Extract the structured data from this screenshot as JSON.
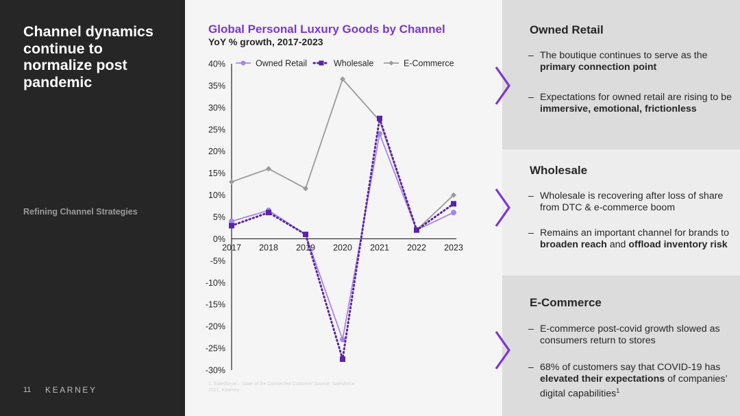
{
  "slide": {
    "title": "Channel dynamics continue to normalize post pandemic",
    "section_label": "Refining Channel Strategies",
    "page_number": "11",
    "brand": "KEARNEY"
  },
  "chart_data": {
    "type": "line",
    "title": "Global Personal Luxury Goods by Channel",
    "subtitle": "YoY % growth, 2017-2023",
    "categories": [
      "2017",
      "2018",
      "2019",
      "2020",
      "2021",
      "2022",
      "2023"
    ],
    "y_ticks": [
      "40%",
      "35%",
      "30%",
      "25%",
      "20%",
      "15%",
      "10%",
      "5%",
      "0%",
      "-5%",
      "-10%",
      "-15%",
      "-20%",
      "-25%",
      "-30%"
    ],
    "ylim": [
      -30,
      40
    ],
    "grid": false,
    "legend_position": "top",
    "series": [
      {
        "name": "Owned Retail",
        "values": [
          4,
          6.5,
          1,
          -23,
          24,
          2,
          6
        ],
        "color": "#a785ea",
        "marker": "circle",
        "dash": "solid"
      },
      {
        "name": "Wholesale",
        "values": [
          3,
          6,
          1,
          -27.5,
          27.5,
          2,
          8
        ],
        "color": "#5b23a8",
        "marker": "square",
        "dash": "dotted"
      },
      {
        "name": "E-Commerce",
        "values": [
          13,
          16,
          11.5,
          36.5,
          27,
          2,
          10
        ],
        "color": "#9a9a9a",
        "marker": "diamond",
        "dash": "solid"
      }
    ],
    "footnote": "1. Salesforce – State of the Connected Customer Source: Salesforce 2021, Kearney"
  },
  "sections": {
    "owned": {
      "heading": "Owned Retail",
      "b1_pre": "The boutique continues to serve as the ",
      "b1_bold": "primary connection point",
      "b2_pre": "Expectations for owned retail are rising to be ",
      "b2_bold": "immersive, emotional, frictionless"
    },
    "wholesale": {
      "heading": "Wholesale",
      "b1": "Wholesale is recovering after loss of share from DTC & e-commerce boom",
      "b2_pre": "Remains an important channel for brands to ",
      "b2_bold1": "broaden reach",
      "b2_mid": " and ",
      "b2_bold2": "offload inventory risk"
    },
    "ecom": {
      "heading": "E-Commerce",
      "b1": "E-commerce post-covid growth slowed as consumers return to stores",
      "b2_pre": "68% of customers say that COVID-19 has ",
      "b2_bold": "elevated their expectations",
      "b2_post": " of companies’ digital capabilities",
      "b2_sup": "1"
    }
  },
  "colors": {
    "accent_purple": "#7b35d6",
    "dark_panel": "#262626",
    "chevron": "#7b35d6"
  }
}
